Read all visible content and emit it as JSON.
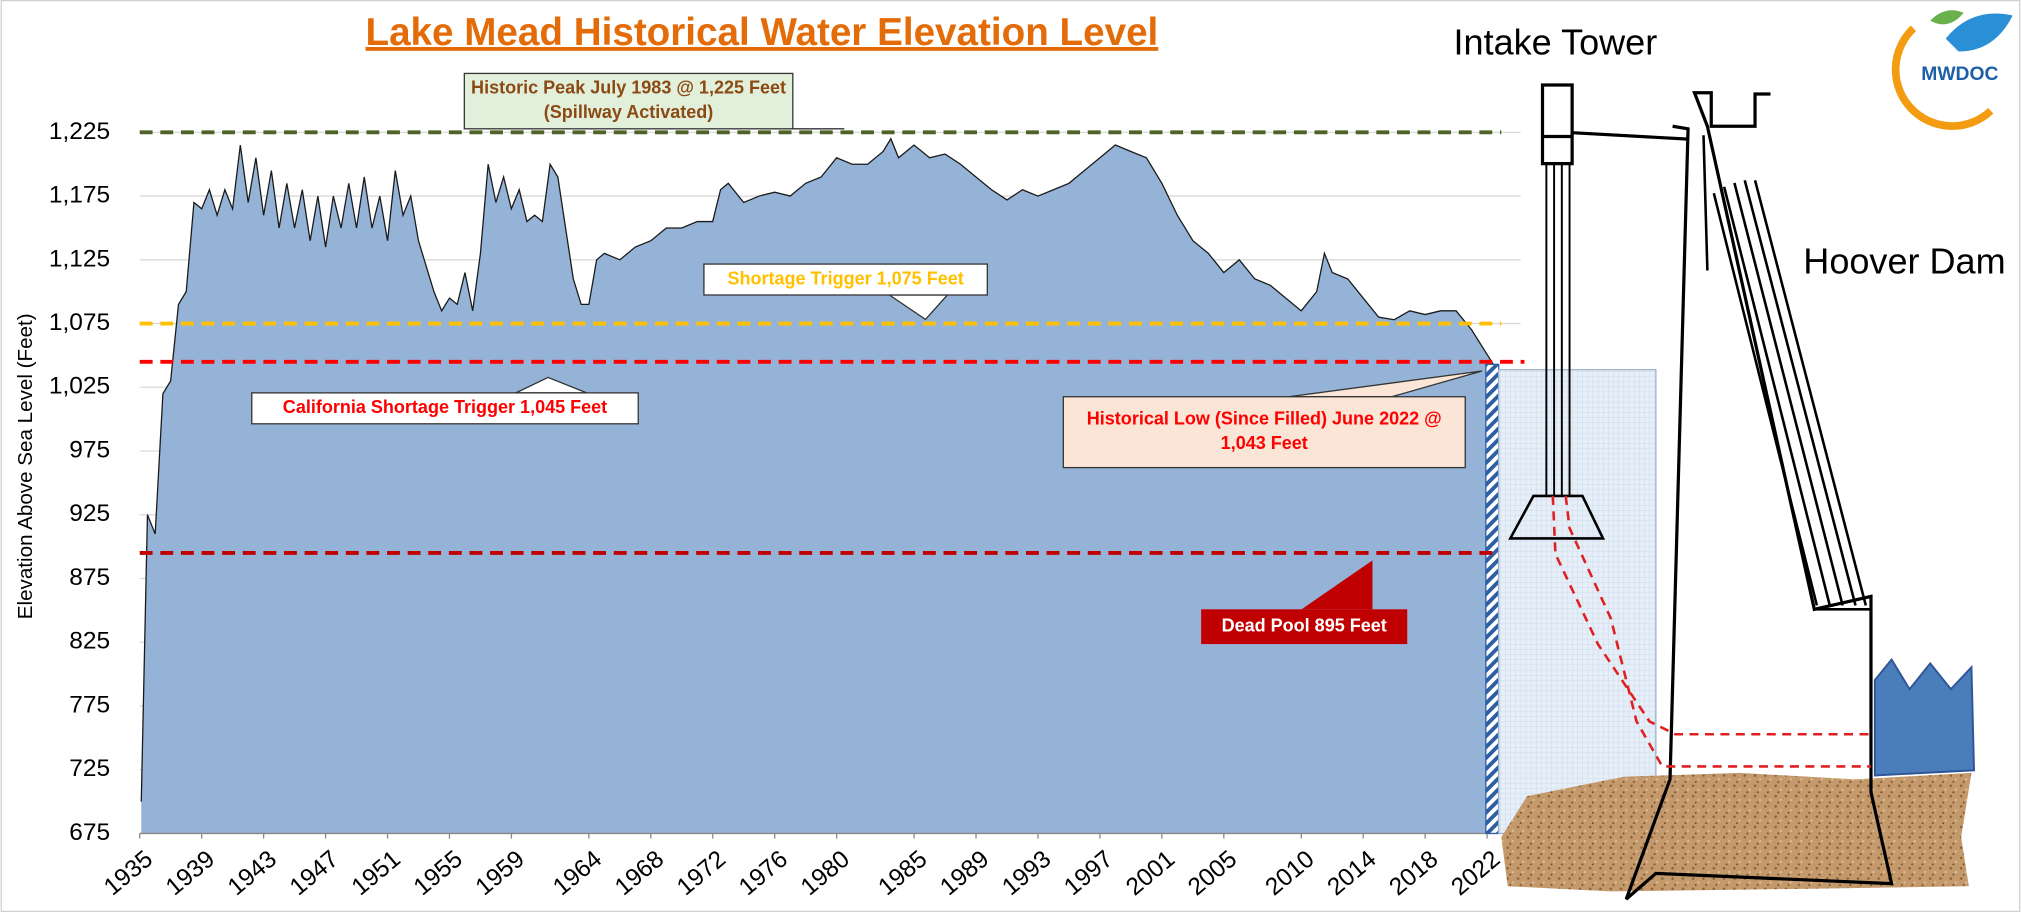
{
  "chart_data": {
    "type": "area",
    "title": "Lake Mead Historical Water Elevation Level",
    "y_label": "Elevation Above Sea Level (Feet)",
    "color": "#95b3d7",
    "x": [
      1935.1,
      1935.5,
      1936,
      1936.5,
      1937,
      1937.5,
      1938,
      1938.5,
      1939,
      1939.5,
      1940,
      1940.5,
      1941,
      1941.5,
      1942,
      1942.5,
      1943,
      1943.5,
      1944,
      1944.5,
      1945,
      1945.5,
      1946,
      1946.5,
      1947,
      1947.5,
      1948,
      1948.5,
      1949,
      1949.5,
      1950,
      1950.5,
      1951,
      1951.5,
      1952,
      1952.5,
      1953,
      1953.5,
      1954,
      1954.5,
      1955,
      1955.5,
      1956,
      1956.5,
      1957,
      1957.5,
      1958,
      1958.5,
      1959,
      1959.5,
      1960,
      1960.5,
      1961,
      1961.5,
      1962,
      1962.5,
      1963,
      1963.5,
      1964,
      1964.5,
      1965,
      1966,
      1967,
      1968,
      1969,
      1970,
      1971,
      1972,
      1972.5,
      1973,
      1974,
      1975,
      1976,
      1977,
      1978,
      1979,
      1980,
      1981,
      1982,
      1983,
      1983.5,
      1984,
      1985,
      1986,
      1987,
      1988,
      1989,
      1990,
      1991,
      1992,
      1993,
      1994,
      1995,
      1996,
      1997,
      1998,
      1999,
      2000,
      2001,
      2002,
      2003,
      2004,
      2005,
      2006,
      2007,
      2008,
      2009,
      2010,
      2011,
      2011.5,
      2012,
      2013,
      2014,
      2015,
      2016,
      2017,
      2018,
      2019,
      2020,
      2021,
      2022.4
    ],
    "values": [
      700,
      925,
      910,
      1020,
      1030,
      1090,
      1100,
      1170,
      1165,
      1180,
      1160,
      1180,
      1165,
      1215,
      1170,
      1205,
      1160,
      1195,
      1150,
      1185,
      1150,
      1180,
      1140,
      1175,
      1135,
      1175,
      1150,
      1185,
      1150,
      1190,
      1150,
      1175,
      1140,
      1195,
      1160,
      1175,
      1140,
      1120,
      1100,
      1085,
      1095,
      1090,
      1115,
      1085,
      1130,
      1200,
      1170,
      1190,
      1165,
      1180,
      1155,
      1160,
      1155,
      1200,
      1190,
      1150,
      1110,
      1090,
      1090,
      1125,
      1130,
      1125,
      1135,
      1140,
      1150,
      1150,
      1155,
      1155,
      1180,
      1185,
      1170,
      1175,
      1178,
      1175,
      1185,
      1190,
      1205,
      1200,
      1200,
      1210,
      1220,
      1205,
      1215,
      1205,
      1208,
      1200,
      1190,
      1180,
      1172,
      1180,
      1175,
      1180,
      1185,
      1195,
      1205,
      1215,
      1210,
      1205,
      1185,
      1160,
      1140,
      1130,
      1115,
      1125,
      1110,
      1105,
      1095,
      1085,
      1100,
      1130,
      1115,
      1110,
      1095,
      1080,
      1078,
      1085,
      1082,
      1085,
      1085,
      1070,
      1043
    ],
    "xlim": [
      1935,
      2022.5
    ],
    "xticks": [
      1935,
      1939,
      1943,
      1947,
      1951,
      1955,
      1959,
      1964,
      1968,
      1972,
      1976,
      1980,
      1985,
      1989,
      1993,
      1997,
      2001,
      2005,
      2010,
      2014,
      2018,
      2022
    ],
    "ylim": [
      675,
      1250
    ],
    "yticks": [
      675,
      725,
      775,
      825,
      875,
      925,
      975,
      {
        "value": 1025,
        "label": "1,025"
      },
      {
        "value": 1075,
        "label": "1,075"
      },
      {
        "value": 1125,
        "label": "1,125"
      },
      {
        "value": 1175,
        "label": "1,175"
      },
      {
        "value": 1225,
        "label": "1,225"
      }
    ],
    "grid": true,
    "reference_lines": [
      {
        "value": 1225,
        "color": "#4f6228",
        "label_lines": [
          "Historic Peak July 1983 @ 1,225 Feet",
          "(Spillway Activated)"
        ]
      },
      {
        "value": 1075,
        "color": "#ffc000",
        "label_lines": [
          "Shortage Trigger 1,075 Feet"
        ]
      },
      {
        "value": 1045,
        "color": "#ff0000",
        "label_lines": [
          "California Shortage Trigger 1,045 Feet"
        ]
      },
      {
        "value": 895,
        "color": "#c00000",
        "label_lines": [
          "Dead Pool 895 Feet"
        ]
      }
    ],
    "annotations": [
      {
        "value": 1043,
        "label_lines": [
          "Historical Low (Since Filled) June 2022  @",
          "1,043 Feet"
        ]
      }
    ]
  },
  "illustration": {
    "intake_tower": "Intake Tower",
    "hoover_dam": "Hoover Dam",
    "logo": "MWDOC"
  }
}
